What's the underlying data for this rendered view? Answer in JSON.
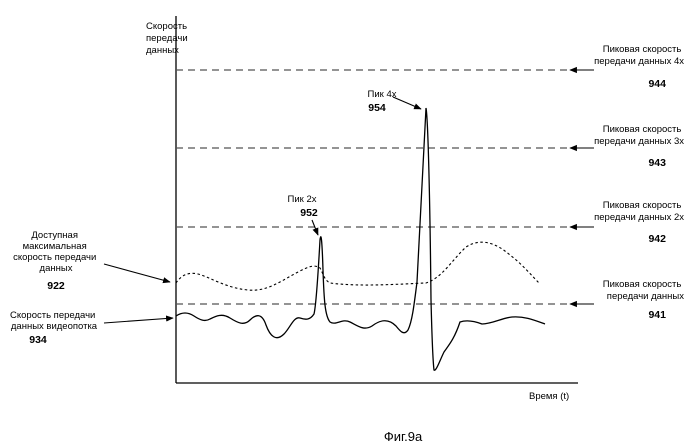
{
  "figure": {
    "caption": "Фиг.9а",
    "y_axis_label": [
      "Скорость",
      "передачи",
      "данных"
    ],
    "x_axis_label": "Время (t)"
  },
  "left_labels": {
    "available_max_rate": {
      "lines": [
        "Доступная",
        "максимальная",
        "скорость передачи",
        "данных"
      ],
      "number": "922"
    },
    "video_stream_rate": {
      "lines": [
        "Скорость передачи",
        "данных видеопотка"
      ],
      "number": "934"
    }
  },
  "peak_levels": [
    {
      "lines": [
        "Пиковая скорость",
        "передачи данных 4x"
      ],
      "number": "944"
    },
    {
      "lines": [
        "Пиковая скорость",
        "передачи данных 3x"
      ],
      "number": "943"
    },
    {
      "lines": [
        "Пиковая скорость",
        "передачи данных 2x"
      ],
      "number": "942"
    },
    {
      "lines": [
        "Пиковая скорость",
        "передачи данных"
      ],
      "number": "941"
    }
  ],
  "peaks": [
    {
      "label": "Пик 2x",
      "number": "952"
    },
    {
      "label": "Пик 4x",
      "number": "954"
    }
  ]
}
